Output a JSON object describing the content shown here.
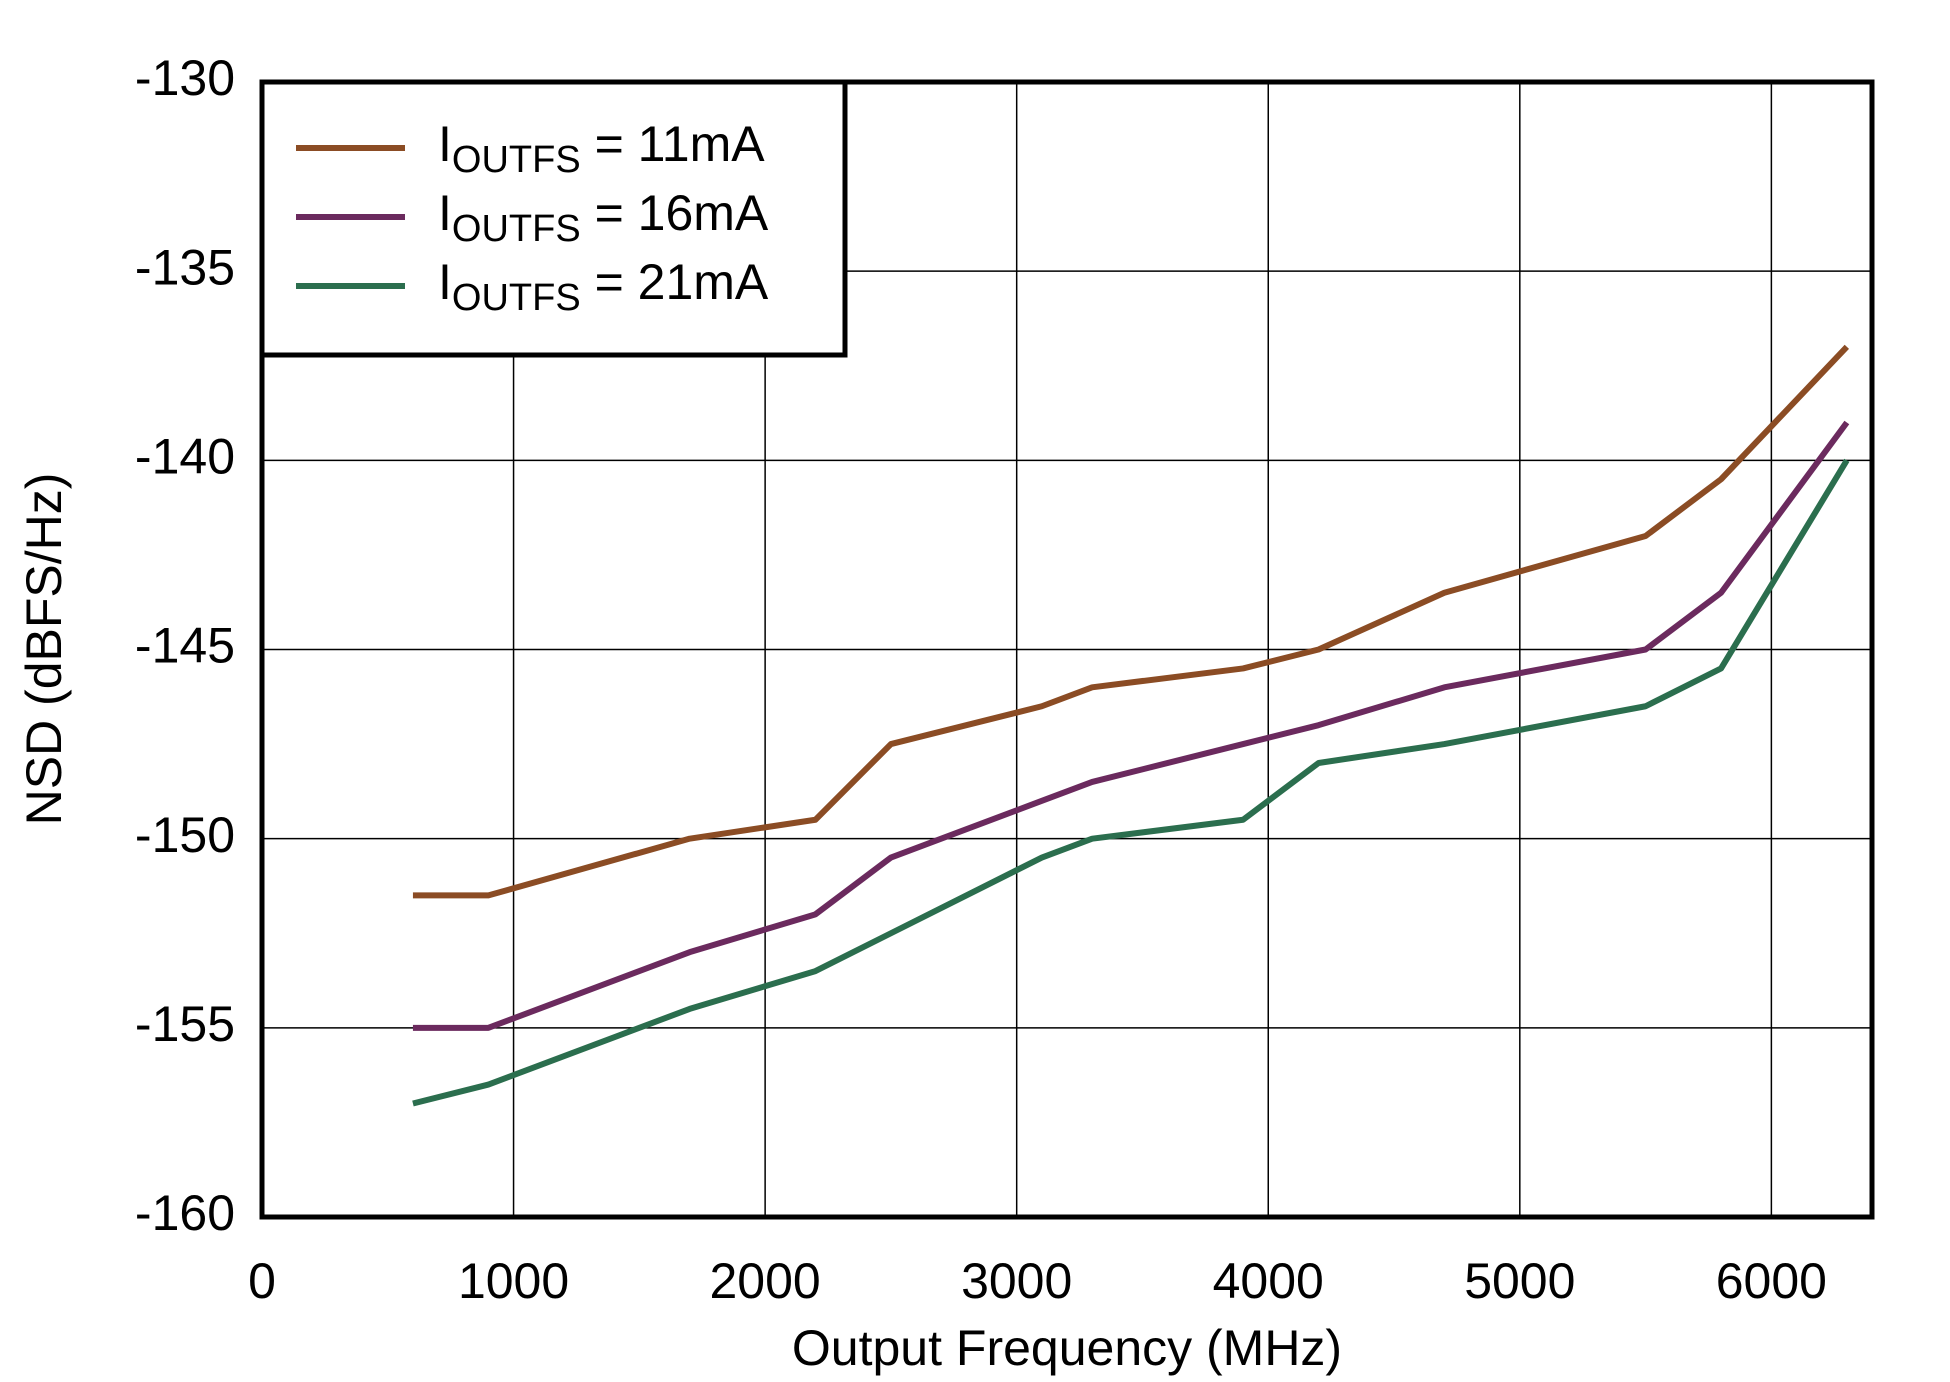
{
  "chart_data": {
    "type": "line",
    "x_label": "Output Frequency (MHz)",
    "y_label": "NSD (dBFS/Hz)",
    "x": [
      600,
      900,
      1700,
      2200,
      2500,
      3100,
      3300,
      3900,
      4200,
      4700,
      5500,
      5800,
      6300
    ],
    "series": [
      {
        "name": "IOUTFS = 11mA",
        "color": "#8b4c24",
        "values": [
          -151.5,
          -151.5,
          -150,
          -149.5,
          -147.5,
          -146.5,
          -146,
          -145.5,
          -145,
          -143.5,
          -142,
          -140.5,
          -137
        ]
      },
      {
        "name": "IOUTFS = 16mA",
        "color": "#6b2a5e",
        "values": [
          -155,
          -155,
          -153,
          -152,
          -150.5,
          -149,
          -148.5,
          -147.5,
          -147,
          -146,
          -145,
          -143.5,
          -139
        ]
      },
      {
        "name": "IOUTFS = 21mA",
        "color": "#2b6e4e",
        "values": [
          -157,
          -156.5,
          -154.5,
          -153.5,
          -152.5,
          -150.5,
          -150,
          -149.5,
          -148,
          -147.5,
          -146.5,
          -145.5,
          -140
        ]
      }
    ],
    "xlim": [
      0,
      6400
    ],
    "xticks": [
      0,
      1000,
      2000,
      3000,
      4000,
      5000,
      6000
    ],
    "ylim": [
      -160,
      -130
    ],
    "yticks": [
      -160,
      -155,
      -150,
      -145,
      -140,
      -135,
      -130
    ],
    "grid": true,
    "legend": "upper left"
  }
}
